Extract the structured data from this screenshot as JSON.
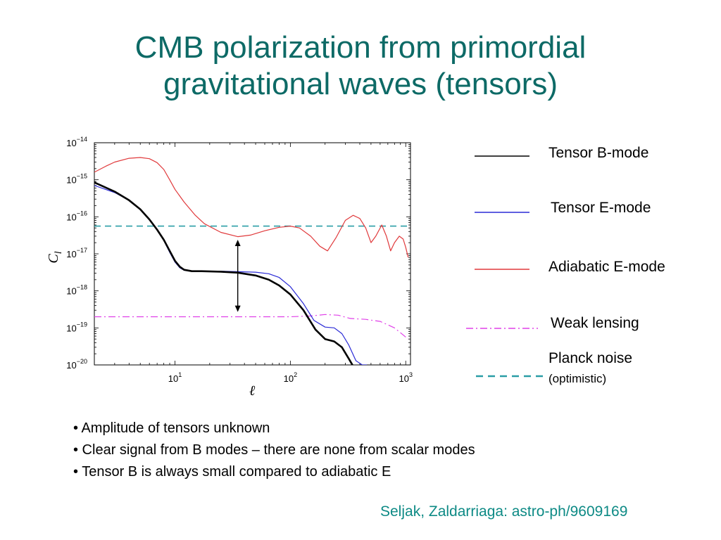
{
  "title": {
    "line1": "CMB polarization from primordial",
    "line2": "gravitational waves (tensors)"
  },
  "colors": {
    "title": "#0d6a66",
    "tensor_b": "#000000",
    "tensor_e": "#2a2ad6",
    "adiabatic_e": "#e0393b",
    "weak_lensing": "#e040e8",
    "planck_noise": "#2a9ea6",
    "citation": "#0d8a85"
  },
  "chart_data": {
    "type": "line",
    "xscale": "log",
    "yscale": "log",
    "xlim": [
      2,
      1100
    ],
    "ylim": [
      1e-20,
      1e-14
    ],
    "xlabel": "ℓ",
    "ylabel": "C_l",
    "xticks": [
      {
        "value": 10,
        "label_base": "10",
        "label_exp": "1"
      },
      {
        "value": 100,
        "label_base": "10",
        "label_exp": "2"
      },
      {
        "value": 1000,
        "label_base": "10",
        "label_exp": "3"
      }
    ],
    "yticks": [
      {
        "value": 1e-14,
        "label_base": "10",
        "label_exp": "−14"
      },
      {
        "value": 1e-15,
        "label_base": "10",
        "label_exp": "−15"
      },
      {
        "value": 1e-16,
        "label_base": "10",
        "label_exp": "−16"
      },
      {
        "value": 1e-17,
        "label_base": "10",
        "label_exp": "−17"
      },
      {
        "value": 1e-18,
        "label_base": "10",
        "label_exp": "−18"
      },
      {
        "value": 1e-19,
        "label_base": "10",
        "label_exp": "−19"
      },
      {
        "value": 1e-20,
        "label_base": "10",
        "label_exp": "−20"
      }
    ],
    "grid": false,
    "legend_position": "right",
    "series": [
      {
        "name": "Tensor B-mode",
        "style": "solid-thick",
        "color": "#000000",
        "points": [
          [
            2,
            8.5e-16
          ],
          [
            3,
            4.8e-16
          ],
          [
            4,
            2.8e-16
          ],
          [
            5,
            1.6e-16
          ],
          [
            6,
            8.5e-17
          ],
          [
            7,
            4.5e-17
          ],
          [
            8,
            2.4e-17
          ],
          [
            9,
            1.2e-17
          ],
          [
            10,
            6.5e-18
          ],
          [
            11,
            4.5e-18
          ],
          [
            12,
            3.7e-18
          ],
          [
            14,
            3.4e-18
          ],
          [
            17,
            3.4e-18
          ],
          [
            25,
            3.3e-18
          ],
          [
            35,
            3.1e-18
          ],
          [
            50,
            2.6e-18
          ],
          [
            65,
            2e-18
          ],
          [
            80,
            1.4e-18
          ],
          [
            100,
            8e-19
          ],
          [
            130,
            3e-19
          ],
          [
            165,
            9e-20
          ],
          [
            200,
            5e-20
          ],
          [
            240,
            4.3e-20
          ],
          [
            280,
            3e-20
          ],
          [
            320,
            1.5e-20
          ],
          [
            360,
            8e-21
          ]
        ]
      },
      {
        "name": "Tensor E-mode",
        "style": "solid",
        "color": "#2a2ad6",
        "points": [
          [
            2,
            7e-16
          ],
          [
            3,
            4.5e-16
          ],
          [
            4,
            2.8e-16
          ],
          [
            5,
            1.6e-16
          ],
          [
            6,
            8.5e-17
          ],
          [
            7,
            4.5e-17
          ],
          [
            8,
            2.3e-17
          ],
          [
            9,
            1.1e-17
          ],
          [
            10,
            6e-18
          ],
          [
            11,
            4.2e-18
          ],
          [
            12,
            3.6e-18
          ],
          [
            14,
            3.4e-18
          ],
          [
            17,
            3.4e-18
          ],
          [
            25,
            3.4e-18
          ],
          [
            35,
            3.3e-18
          ],
          [
            50,
            3.2e-18
          ],
          [
            65,
            2.9e-18
          ],
          [
            80,
            2.3e-18
          ],
          [
            100,
            1.3e-18
          ],
          [
            130,
            4.5e-19
          ],
          [
            160,
            1.6e-19
          ],
          [
            200,
            1.05e-19
          ],
          [
            240,
            1e-19
          ],
          [
            280,
            7e-20
          ],
          [
            320,
            3.5e-20
          ],
          [
            370,
            1.3e-20
          ],
          [
            420,
            1e-20
          ],
          [
            460,
            1e-20
          ]
        ]
      },
      {
        "name": "Adiabatic E-mode",
        "style": "solid",
        "color": "#e0393b",
        "points": [
          [
            2,
            1.6e-15
          ],
          [
            2.5,
            2.3e-15
          ],
          [
            3,
            3e-15
          ],
          [
            4,
            3.8e-15
          ],
          [
            5,
            4e-15
          ],
          [
            6,
            3.7e-15
          ],
          [
            7,
            2.9e-15
          ],
          [
            8,
            1.9e-15
          ],
          [
            9,
            1e-15
          ],
          [
            10,
            5.5e-16
          ],
          [
            12,
            2.5e-16
          ],
          [
            15,
            1.1e-16
          ],
          [
            18,
            6.5e-17
          ],
          [
            25,
            3.8e-17
          ],
          [
            35,
            2.9e-17
          ],
          [
            45,
            3.2e-17
          ],
          [
            60,
            4.2e-17
          ],
          [
            80,
            5.2e-17
          ],
          [
            100,
            5.6e-17
          ],
          [
            120,
            5e-17
          ],
          [
            150,
            3e-17
          ],
          [
            180,
            1.6e-17
          ],
          [
            210,
            1.2e-17
          ],
          [
            250,
            2.8e-17
          ],
          [
            300,
            8e-17
          ],
          [
            350,
            1.1e-16
          ],
          [
            400,
            9e-17
          ],
          [
            450,
            5e-17
          ],
          [
            500,
            2e-17
          ],
          [
            550,
            3e-17
          ],
          [
            620,
            6e-17
          ],
          [
            680,
            3e-17
          ],
          [
            740,
            1.2e-17
          ],
          [
            800,
            2e-17
          ],
          [
            880,
            3e-17
          ],
          [
            950,
            2.5e-17
          ],
          [
            1000,
            1.5e-17
          ],
          [
            1050,
            8e-18
          ]
        ]
      },
      {
        "name": "Weak lensing",
        "style": "dashdot",
        "color": "#e040e8",
        "points": [
          [
            2,
            2e-19
          ],
          [
            10,
            2e-19
          ],
          [
            30,
            2e-19
          ],
          [
            100,
            2e-19
          ],
          [
            150,
            2.1e-19
          ],
          [
            200,
            2.3e-19
          ],
          [
            260,
            2.2e-19
          ],
          [
            330,
            1.8e-19
          ],
          [
            450,
            1.7e-19
          ],
          [
            600,
            1.5e-19
          ],
          [
            800,
            1e-19
          ],
          [
            1050,
            5e-20
          ]
        ]
      },
      {
        "name": "Planck noise\n(optimistic)",
        "style": "dashed",
        "color": "#2a9ea6",
        "points": [
          [
            2,
            5.6e-17
          ],
          [
            1100,
            5.6e-17
          ]
        ]
      }
    ],
    "annotations": [
      {
        "type": "double-arrow",
        "x": 35,
        "y_top": 2.4e-17,
        "y_bottom": 2.7e-19
      }
    ]
  },
  "legend": [
    {
      "label": "Tensor B-mode"
    },
    {
      "label": "Tensor E-mode"
    },
    {
      "label": "Adiabatic E-mode"
    },
    {
      "label": "Weak lensing"
    },
    {
      "label": "Planck noise",
      "sublabel": "(optimistic)"
    }
  ],
  "bullets": [
    "• Amplitude of tensors unknown",
    "• Clear signal from B modes – there are none from scalar modes",
    "• Tensor B is always small compared to adiabatic E"
  ],
  "citation": "Seljak, Zaldarriaga: astro-ph/9609169"
}
